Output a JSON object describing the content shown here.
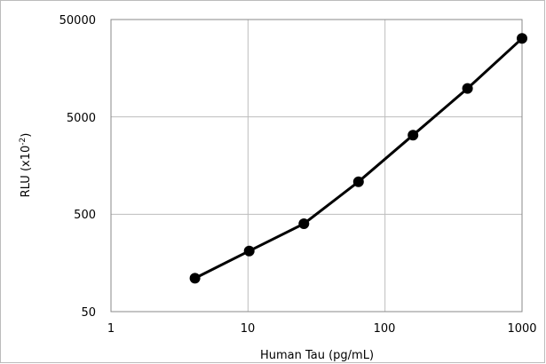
{
  "chart_data": {
    "type": "line",
    "xscale": "log",
    "yscale": "log",
    "xlabel": "Human Tau (pg/mL)",
    "ylabel": "RLU (x10",
    "ylabel_superscript": "-2",
    "ylabel_suffix": ")",
    "xlim": [
      1,
      1000
    ],
    "ylim": [
      50,
      50000
    ],
    "x_ticks": [
      "1",
      "10",
      "100",
      "1000"
    ],
    "y_ticks": [
      "50",
      "500",
      "5000",
      "50000"
    ],
    "grid": true,
    "series": [
      {
        "x": [
          4.1,
          10.2,
          25.6,
          64,
          160,
          400,
          1000
        ],
        "y": [
          110,
          210,
          400,
          1080,
          3250,
          9800,
          32000
        ],
        "color": "#000000",
        "marker": "circle"
      }
    ]
  }
}
